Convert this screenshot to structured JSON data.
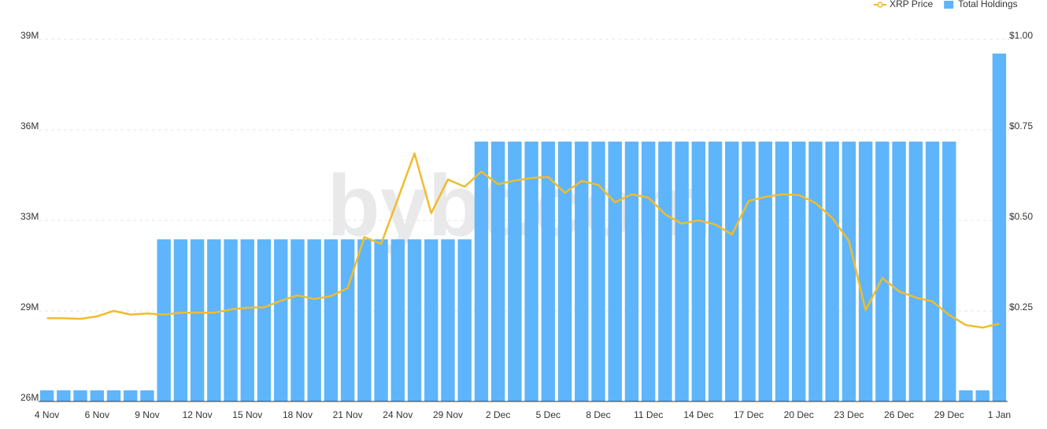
{
  "chart_data": {
    "type": "bar-line",
    "watermark": "bybt.com",
    "categories": [
      "4 Nov",
      null,
      null,
      "6 Nov",
      null,
      null,
      "9 Nov",
      null,
      null,
      "12 Nov",
      null,
      null,
      "15 Nov",
      null,
      null,
      "18 Nov",
      null,
      null,
      "21 Nov",
      null,
      null,
      "24 Nov",
      null,
      null,
      "29 Nov",
      null,
      null,
      "2 Dec",
      null,
      null,
      "5 Dec",
      null,
      null,
      "8 Dec",
      null,
      null,
      "11 Dec",
      null,
      null,
      "14 Dec",
      null,
      null,
      "17 Dec",
      null,
      null,
      "20 Dec",
      null,
      null,
      "23 Dec",
      null,
      null,
      "26 Dec",
      null,
      null,
      "29 Dec",
      null,
      null,
      "1 Jan"
    ],
    "series": [
      {
        "name": "Total Holdings",
        "type": "bar",
        "color": "#5eb5fb",
        "values": [
          26.4,
          26.4,
          26.4,
          26.4,
          26.4,
          26.4,
          26.4,
          31.82,
          31.82,
          31.82,
          31.82,
          31.82,
          31.82,
          31.82,
          31.82,
          31.82,
          31.82,
          31.82,
          31.82,
          31.82,
          31.82,
          31.82,
          31.82,
          31.82,
          31.82,
          31.82,
          35.33,
          35.33,
          35.33,
          35.33,
          35.33,
          35.33,
          35.33,
          35.33,
          35.33,
          35.33,
          35.33,
          35.33,
          35.33,
          35.33,
          35.33,
          35.33,
          35.33,
          35.33,
          35.33,
          35.33,
          35.33,
          35.33,
          35.33,
          35.33,
          35.33,
          35.33,
          35.33,
          35.33,
          35.33,
          26.4,
          26.4,
          38.49
        ]
      },
      {
        "name": "XRP Price",
        "type": "line",
        "axis": "y2",
        "color": "#f0bc2e",
        "values": [
          0.23,
          0.23,
          0.228,
          0.235,
          0.25,
          0.24,
          0.243,
          0.24,
          0.245,
          0.245,
          0.245,
          0.254,
          0.259,
          0.26,
          0.278,
          0.293,
          0.283,
          0.291,
          0.313,
          0.454,
          0.435,
          0.559,
          0.685,
          0.52,
          0.613,
          0.593,
          0.635,
          0.6,
          0.61,
          0.617,
          0.62,
          0.576,
          0.609,
          0.598,
          0.55,
          0.572,
          0.563,
          0.517,
          0.491,
          0.5,
          0.489,
          0.461,
          0.554,
          0.565,
          0.572,
          0.57,
          0.548,
          0.507,
          0.443,
          0.252,
          0.341,
          0.304,
          0.287,
          0.276,
          0.239,
          0.211,
          0.204,
          0.215
        ]
      }
    ],
    "ylim": [
      26,
      39
    ],
    "yticks": [
      {
        "value": 26,
        "label": "26M"
      },
      {
        "value": 29.25,
        "label": "29M"
      },
      {
        "value": 32.5,
        "label": "33M"
      },
      {
        "value": 35.75,
        "label": "36M"
      },
      {
        "value": 39,
        "label": "39M"
      }
    ],
    "y2lim": [
      0,
      1
    ],
    "y2ticks": [
      {
        "value": 0.25,
        "label": "$0.25"
      },
      {
        "value": 0.5,
        "label": "$0.50"
      },
      {
        "value": 0.75,
        "label": "$0.75"
      },
      {
        "value": 1,
        "label": "$1.00"
      }
    ],
    "grid": true,
    "legend": "top-right"
  }
}
